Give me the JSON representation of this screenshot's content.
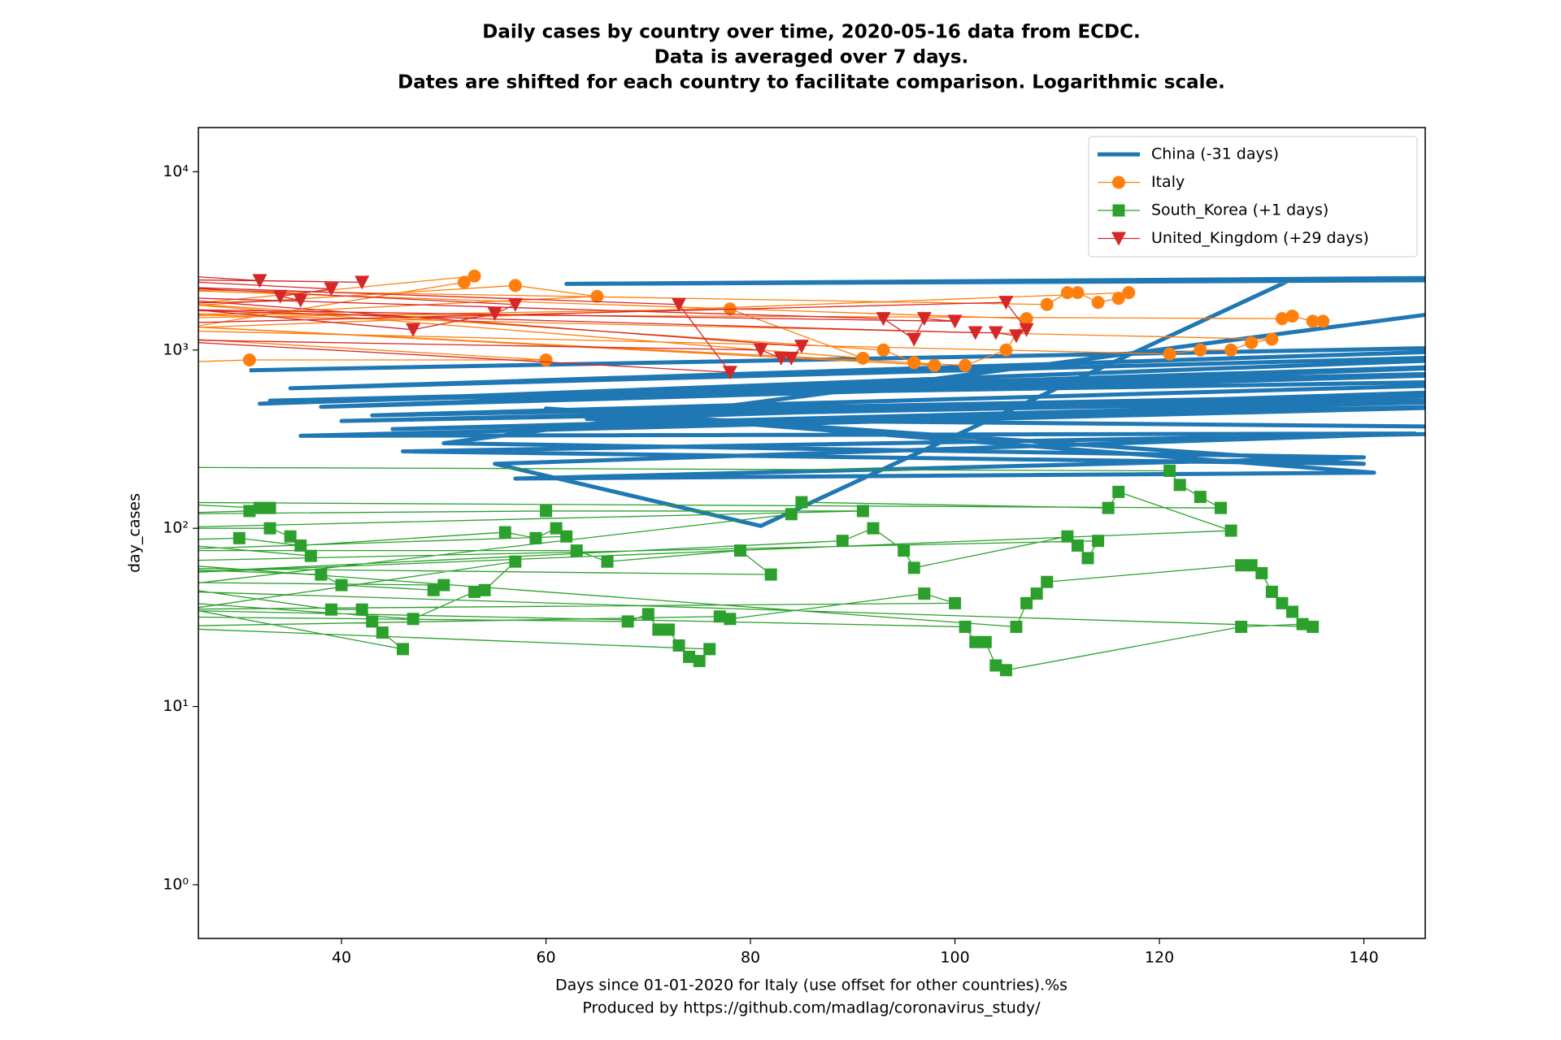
{
  "chart_data": {
    "type": "line",
    "title": [
      "Daily cases by country over time, 2020-05-16 data from ECDC.",
      "Data is averaged over 7 days.",
      "Dates are shifted for each country to facilitate comparison. Logarithmic scale."
    ],
    "xlabel": [
      "Days since 01-01-2020 for Italy (use offset for other countries).%s",
      "Produced by https://github.com/madlag/coronavirus_study/"
    ],
    "ylabel": "day_cases",
    "yscale": "log",
    "grid": false,
    "legend": "upper right",
    "xlim": [
      26,
      146
    ],
    "xticks": [
      40,
      60,
      80,
      100,
      120,
      140
    ],
    "ylim": [
      0.5,
      17700
    ],
    "yticks": [
      {
        "value": 1,
        "label": "10⁰"
      },
      {
        "value": 10,
        "label": "10¹"
      },
      {
        "value": 100,
        "label": "10²"
      },
      {
        "value": 1000,
        "label": "10³"
      },
      {
        "value": 10000,
        "label": "10⁴"
      }
    ],
    "series": [
      {
        "name": "China (-31 days)",
        "color": "#1f77b4",
        "marker": "none",
        "linewidth": 5,
        "x": [
          31,
          175,
          35,
          175,
          32,
          175,
          38,
          175,
          33,
          175,
          43,
          175,
          40,
          175,
          45,
          175,
          36,
          145,
          55,
          81,
          133,
          175,
          62,
          175,
          50,
          140,
          57,
          141,
          60,
          140,
          46,
          175,
          64,
          175
        ],
        "values": [
          770,
          1100,
          610,
          1000,
          500,
          900,
          480,
          800,
          520,
          700,
          430,
          600,
          400,
          560,
          360,
          520,
          330,
          340,
          230,
          103,
          2500,
          2500,
          2350,
          2600,
          300,
          250,
          190,
          205,
          470,
          230,
          270,
          360,
          410,
          650
        ]
      },
      {
        "name": "Italy",
        "color": "#ff7f0e",
        "marker": "circle",
        "linewidth": 1.3,
        "x": [
          20,
          31,
          60,
          20,
          52,
          53,
          20,
          57,
          65,
          20,
          78,
          91,
          20,
          93,
          96,
          98,
          20,
          101,
          105,
          107,
          20,
          109,
          111,
          112,
          114,
          116,
          117,
          20,
          121,
          124,
          127,
          129,
          131,
          20,
          132,
          133,
          135,
          136
        ],
        "values": [
          840,
          880,
          880,
          1200,
          2400,
          2600,
          1700,
          2300,
          2000,
          1500,
          1700,
          900,
          1900,
          1000,
          850,
          820,
          1400,
          820,
          1000,
          1500,
          2200,
          1800,
          2100,
          2100,
          1850,
          1950,
          2100,
          1300,
          950,
          1000,
          1000,
          1100,
          1150,
          1600,
          1500,
          1550,
          1450,
          1450
        ]
      },
      {
        "name": "South_Korea (+1 days)",
        "color": "#2ca02c",
        "marker": "square",
        "linewidth": 1.3,
        "x": [
          20,
          121,
          122,
          124,
          126,
          20,
          32,
          33,
          31,
          20,
          60,
          91,
          20,
          33,
          35,
          37,
          20,
          30,
          36,
          56,
          59,
          61,
          62,
          20,
          63,
          66,
          79,
          82,
          20,
          38,
          40,
          49,
          50,
          20,
          39,
          42,
          43,
          44,
          46,
          20,
          47,
          53,
          54,
          57,
          20,
          68,
          70,
          71,
          72,
          73,
          74,
          75,
          76,
          20,
          77,
          78,
          97,
          100,
          20,
          101,
          102,
          103,
          104,
          105,
          128,
          134,
          135,
          20,
          84,
          85,
          115,
          116,
          127,
          20,
          89,
          92,
          95,
          96,
          111,
          112,
          113,
          114,
          20,
          106,
          107,
          108,
          109,
          128,
          129,
          130,
          131,
          132,
          133
        ],
        "values": [
          220,
          210,
          175,
          150,
          130,
          140,
          130,
          130,
          125,
          120,
          125,
          125,
          100,
          100,
          90,
          70,
          85,
          88,
          80,
          95,
          88,
          100,
          90,
          75,
          75,
          65,
          75,
          55,
          60,
          55,
          48,
          45,
          48,
          50,
          35,
          35,
          30,
          26,
          21,
          40,
          31,
          44,
          45,
          65,
          32,
          30,
          33,
          27,
          27,
          22,
          19,
          18,
          21,
          28,
          32,
          31,
          43,
          38,
          35,
          28,
          23,
          23,
          17,
          16,
          28,
          29,
          28,
          45,
          120,
          140,
          130,
          160,
          97,
          55,
          85,
          100,
          75,
          60,
          90,
          80,
          68,
          85,
          65,
          28,
          38,
          43,
          50,
          62,
          62,
          56,
          44,
          38,
          34
        ]
      },
      {
        "name": "United_Kingdom (+29 days)",
        "color": "#d62728",
        "marker": "triangle-down",
        "linewidth": 1.3,
        "x": [
          20,
          32,
          42,
          20,
          39,
          34,
          36,
          20,
          47,
          55,
          57,
          20,
          73,
          78,
          20,
          81,
          83,
          84,
          85,
          20,
          93,
          96,
          97,
          100,
          20,
          102,
          104,
          106,
          107,
          105,
          20
        ],
        "values": [
          2700,
          2450,
          2400,
          2500,
          2200,
          2000,
          1900,
          1800,
          1300,
          1600,
          1800,
          2300,
          1800,
          750,
          1150,
          1000,
          900,
          900,
          1050,
          2000,
          1500,
          1150,
          1500,
          1450,
          1700,
          1250,
          1250,
          1200,
          1300,
          1850,
          1400
        ]
      }
    ]
  }
}
